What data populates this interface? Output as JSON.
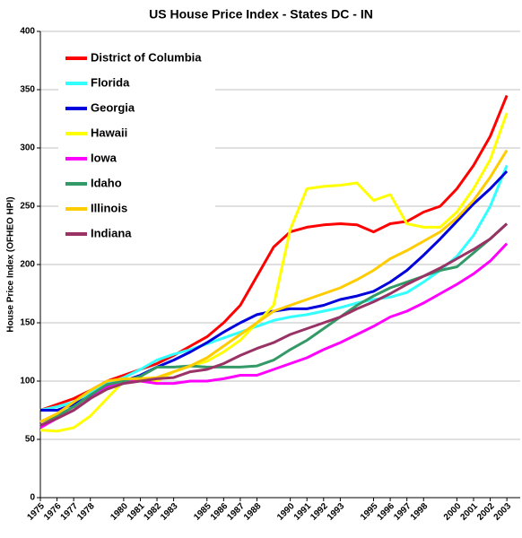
{
  "chart_data": {
    "type": "line",
    "title": "US House Price Index - States  DC - IN",
    "y_label": "House Price Index (OFHEO  HPI)",
    "x": [
      1975,
      1976,
      1977,
      1978,
      1979,
      1980,
      1981,
      1982,
      1983,
      1984,
      1985,
      1986,
      1987,
      1988,
      1989,
      1990,
      1991,
      1992,
      1993,
      1994,
      1995,
      1996,
      1997,
      1998,
      1999,
      2000,
      2001,
      2002,
      2003
    ],
    "xlim": [
      1975,
      2003.8
    ],
    "xticks": [
      1975,
      1976,
      1977,
      1978,
      1980,
      1981,
      1982,
      1983,
      1985,
      1986,
      1987,
      1988,
      1990,
      1991,
      1992,
      1993,
      1995,
      1996,
      1997,
      1998,
      2000,
      2001,
      2002,
      2003
    ],
    "ylim": [
      0,
      400
    ],
    "yticks": [
      0,
      50,
      100,
      150,
      200,
      250,
      300,
      350,
      400
    ],
    "grid": true,
    "legend": "upper left",
    "series": [
      {
        "name": "District of Columbia",
        "color": "#ff0000",
        "values": [
          75,
          80,
          85,
          92,
          100,
          105,
          110,
          115,
          122,
          130,
          138,
          150,
          165,
          190,
          215,
          228,
          232,
          234,
          235,
          234,
          228,
          235,
          237,
          245,
          250,
          265,
          285,
          310,
          345
        ]
      },
      {
        "name": "Florida",
        "color": "#33ffff",
        "values": [
          75,
          78,
          82,
          90,
          98,
          103,
          110,
          118,
          123,
          127,
          132,
          137,
          142,
          147,
          152,
          155,
          157,
          160,
          163,
          167,
          170,
          172,
          176,
          185,
          195,
          207,
          225,
          250,
          285
        ]
      },
      {
        "name": "Georgia",
        "color": "#0000dd",
        "values": [
          75,
          75,
          80,
          87,
          95,
          100,
          105,
          112,
          118,
          125,
          133,
          142,
          150,
          157,
          160,
          162,
          162,
          165,
          170,
          173,
          177,
          185,
          195,
          208,
          222,
          237,
          252,
          265,
          280
        ]
      },
      {
        "name": "Hawaii",
        "color": "#ffff00",
        "values": [
          58,
          57,
          60,
          70,
          85,
          100,
          103,
          100,
          108,
          113,
          117,
          125,
          135,
          150,
          165,
          230,
          265,
          267,
          268,
          270,
          255,
          260,
          235,
          232,
          232,
          245,
          265,
          290,
          330
        ]
      },
      {
        "name": "Iowa",
        "color": "#ff00ff",
        "values": [
          60,
          68,
          75,
          85,
          95,
          100,
          100,
          98,
          98,
          100,
          100,
          102,
          105,
          105,
          110,
          115,
          120,
          127,
          133,
          140,
          147,
          155,
          160,
          167,
          175,
          183,
          192,
          203,
          218
        ]
      },
      {
        "name": "Idaho",
        "color": "#339966",
        "values": [
          65,
          70,
          78,
          88,
          97,
          100,
          104,
          112,
          112,
          113,
          112,
          112,
          112,
          113,
          118,
          127,
          135,
          145,
          155,
          165,
          173,
          180,
          185,
          190,
          195,
          198,
          210,
          222,
          235
        ]
      },
      {
        "name": "Illinois",
        "color": "#ffcc00",
        "values": [
          65,
          72,
          82,
          92,
          100,
          102,
          102,
          103,
          108,
          113,
          120,
          130,
          140,
          150,
          160,
          165,
          170,
          175,
          180,
          187,
          195,
          205,
          212,
          220,
          228,
          240,
          255,
          275,
          298
        ]
      },
      {
        "name": "Indiana",
        "color": "#993366",
        "values": [
          62,
          68,
          75,
          85,
          93,
          98,
          100,
          102,
          103,
          108,
          110,
          115,
          122,
          128,
          133,
          140,
          145,
          150,
          155,
          162,
          168,
          175,
          183,
          190,
          197,
          205,
          213,
          222,
          235
        ]
      }
    ]
  }
}
